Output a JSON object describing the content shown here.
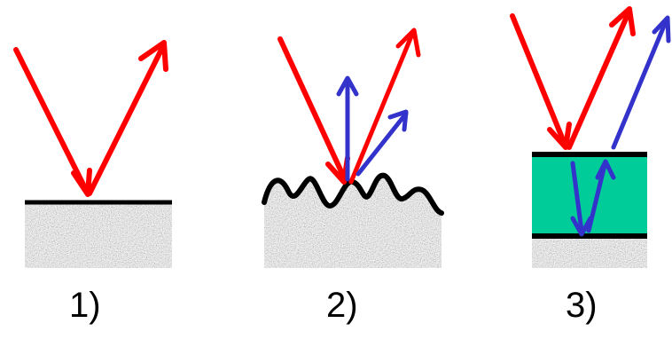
{
  "panels": [
    {
      "label": "1)",
      "surface": "smooth"
    },
    {
      "label": "2)",
      "surface": "rough"
    },
    {
      "label": "3)",
      "surface": "thin-film"
    }
  ],
  "colors": {
    "incident_reflected": "#ff0000",
    "scattered": "#3333cc",
    "film": "#00cc99",
    "boundary": "#000000",
    "substrate": "#a8a8a8"
  }
}
